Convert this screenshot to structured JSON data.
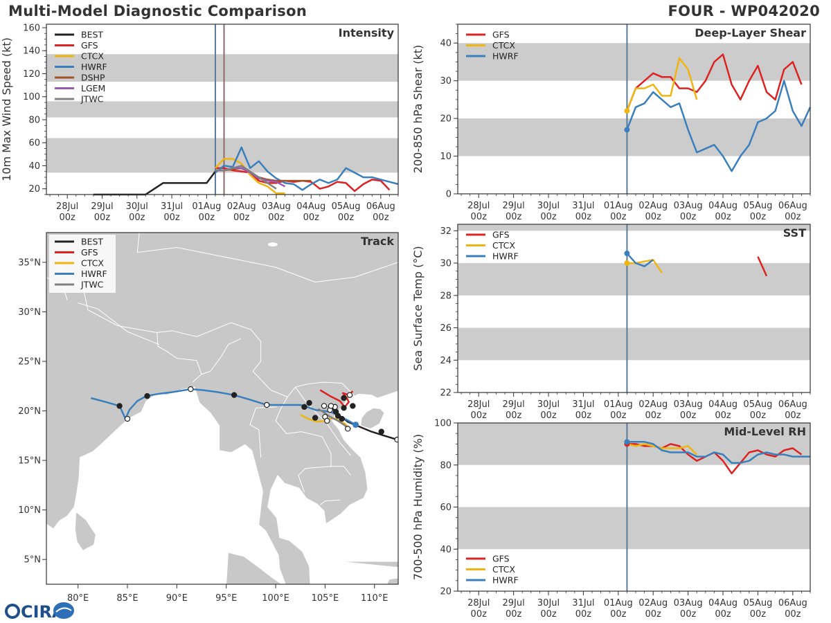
{
  "header": {
    "title": "Multi-Model Diagnostic Comparison",
    "storm": "FOUR - WP042020"
  },
  "logo": {
    "text": "CIRA"
  },
  "colors": {
    "BEST": "#222222",
    "GFS": "#dd2222",
    "CTCX": "#eeb511",
    "HWRF": "#3a7fbd",
    "DSHP": "#a0522d",
    "LGEM": "#9b59b6",
    "JTWC": "#808080",
    "band": "#cccccc",
    "land": "#c8c8c8",
    "sea": "#ffffff",
    "vline": "#5a7a99"
  },
  "time_axis": {
    "ticks": [
      0,
      1,
      2,
      3,
      4,
      5,
      6,
      7,
      8,
      9
    ],
    "labels_top": [
      "28Jul",
      "29Jul",
      "30Jul",
      "31Jul",
      "01Aug",
      "02Aug",
      "03Aug",
      "04Aug",
      "05Aug",
      "06Aug"
    ],
    "labels_bottom": [
      "00z",
      "00z",
      "00z",
      "00z",
      "00z",
      "00z",
      "00z",
      "00z",
      "00z",
      "00z"
    ],
    "range": [
      -0.6,
      9.5
    ]
  },
  "chart_data": [
    {
      "id": "intensity",
      "type": "line",
      "title": "Intensity",
      "ylabel": "10m Max Wind Speed (kt)",
      "ylim": [
        15,
        163
      ],
      "yticks": [
        20,
        40,
        60,
        80,
        100,
        120,
        140,
        160
      ],
      "bands": [
        [
          34,
          64
        ],
        [
          82,
          96
        ],
        [
          113,
          137
        ]
      ],
      "vlines": [
        4.25,
        4.5
      ],
      "legend": [
        "BEST",
        "GFS",
        "CTCX",
        "HWRF",
        "DSHP",
        "LGEM",
        "JTWC"
      ],
      "series": [
        {
          "name": "BEST",
          "x": [
            0.75,
            1,
            1.25,
            1.5,
            1.75,
            2,
            2.25,
            2.5,
            2.75,
            3,
            3.25,
            3.5,
            3.75,
            4,
            4.25
          ],
          "y": [
            15,
            15,
            15,
            15,
            15,
            15,
            15,
            20,
            25,
            25,
            25,
            25,
            25,
            25,
            35
          ]
        },
        {
          "name": "GFS",
          "x": [
            4.25,
            4.5,
            4.75,
            5,
            5.25,
            5.5,
            5.75,
            6,
            6.25,
            6.5,
            6.75,
            7,
            7.25,
            7.5,
            7.75,
            8,
            8.25,
            8.5,
            8.75,
            9,
            9.25
          ],
          "y": [
            38,
            38,
            36,
            35,
            34,
            27,
            25,
            25,
            27,
            26,
            27,
            26,
            20,
            22,
            26,
            25,
            18,
            24,
            28,
            27,
            19
          ]
        },
        {
          "name": "CTCX",
          "x": [
            4.25,
            4.5,
            4.75,
            5,
            5.25,
            5.5,
            5.75,
            6,
            6.25
          ],
          "y": [
            38,
            46,
            46,
            42,
            32,
            25,
            22,
            16,
            16
          ]
        },
        {
          "name": "HWRF",
          "x": [
            4.25,
            4.5,
            4.75,
            5,
            5.25,
            5.5,
            5.75,
            6,
            6.25,
            6.5,
            6.75,
            7,
            7.25,
            7.5,
            7.75,
            8,
            8.25,
            8.5,
            8.75,
            9,
            9.25,
            9.5
          ],
          "y": [
            34,
            40,
            39,
            56,
            38,
            44,
            35,
            29,
            25,
            24,
            19,
            24,
            28,
            25,
            28,
            38,
            34,
            30,
            30,
            28,
            26,
            24
          ]
        },
        {
          "name": "DSHP",
          "x": [
            4.25,
            4.5,
            4.75,
            5,
            5.25,
            5.5,
            5.75,
            6,
            6.25,
            6.5,
            6.75,
            7
          ],
          "y": [
            36,
            36,
            37,
            38,
            34,
            30,
            28,
            27,
            27,
            27,
            27,
            27
          ]
        },
        {
          "name": "LGEM",
          "x": [
            4.25,
            4.5,
            4.75,
            5,
            5.25,
            5.5,
            5.75,
            6,
            6.25
          ],
          "y": [
            36,
            36,
            38,
            38,
            34,
            29,
            27,
            26,
            22
          ]
        },
        {
          "name": "JTWC",
          "x": [
            4.25,
            4.5,
            4.75,
            5,
            5.25,
            5.5,
            5.75,
            6
          ],
          "y": [
            36,
            36,
            38,
            40,
            35,
            30,
            25,
            20
          ]
        }
      ]
    },
    {
      "id": "shear",
      "type": "line",
      "title": "Deep-Layer Shear",
      "ylabel": "200-850 hPa Shear (kt)",
      "ylim": [
        0,
        45
      ],
      "yticks": [
        0,
        10,
        20,
        30,
        40
      ],
      "bands": [
        [
          10,
          20
        ],
        [
          30,
          40
        ]
      ],
      "vlines": [
        4.25
      ],
      "legend": [
        "GFS",
        "CTCX",
        "HWRF"
      ],
      "series": [
        {
          "name": "GFS",
          "x": [
            4.25,
            4.5,
            4.75,
            5,
            5.25,
            5.5,
            5.75,
            6,
            6.25,
            6.5,
            6.75,
            7,
            7.25,
            7.5,
            7.75,
            8,
            8.25,
            8.5,
            8.75,
            9,
            9.25
          ],
          "y": [
            22,
            28,
            30,
            32,
            31,
            31,
            28,
            28,
            27,
            30,
            35,
            37,
            29,
            25,
            30,
            34,
            27,
            25,
            33,
            35,
            29
          ]
        },
        {
          "name": "CTCX",
          "x": [
            4.25,
            4.5,
            4.75,
            5,
            5.25,
            5.5,
            5.75,
            6,
            6.25
          ],
          "y": [
            22,
            28,
            28,
            29,
            26,
            26,
            36,
            33,
            25
          ]
        },
        {
          "name": "HWRF",
          "x": [
            4.25,
            4.5,
            4.75,
            5,
            5.25,
            5.5,
            5.75,
            6,
            6.25,
            6.5,
            6.75,
            7,
            7.25,
            7.5,
            7.75,
            8,
            8.25,
            8.5,
            8.75,
            9,
            9.25,
            9.5
          ],
          "y": [
            17,
            23,
            24,
            27,
            25,
            23,
            24,
            17,
            11,
            12,
            13,
            10,
            6,
            10,
            13,
            19,
            20,
            22,
            30,
            22,
            18,
            23
          ]
        }
      ],
      "markers": [
        {
          "name": "CTCX",
          "x": 4.25,
          "y": 22
        },
        {
          "name": "HWRF",
          "x": 4.25,
          "y": 17
        }
      ]
    },
    {
      "id": "sst",
      "type": "line",
      "title": "SST",
      "ylabel": "Sea Surface Temp (°C)",
      "ylim": [
        22,
        32.4
      ],
      "yticks": [
        22,
        24,
        26,
        28,
        30,
        32
      ],
      "bands": [
        [
          24,
          26
        ],
        [
          28,
          30
        ],
        [
          32,
          32.4
        ]
      ],
      "vlines": [
        4.25
      ],
      "legend": [
        "GFS",
        "CTCX",
        "HWRF"
      ],
      "series": [
        {
          "name": "GFS",
          "x": [
            8.0,
            8.25
          ],
          "y": [
            30.4,
            29.2
          ]
        },
        {
          "name": "CTCX",
          "x": [
            4.25,
            4.5,
            4.75,
            5,
            5.25
          ],
          "y": [
            30.0,
            30.0,
            30.1,
            30.2,
            29.4
          ]
        },
        {
          "name": "HWRF",
          "x": [
            4.25,
            4.5,
            4.75,
            5
          ],
          "y": [
            30.6,
            30.0,
            29.8,
            30.2
          ]
        }
      ],
      "markers": [
        {
          "name": "CTCX",
          "x": 4.25,
          "y": 30.0
        },
        {
          "name": "HWRF",
          "x": 4.25,
          "y": 30.6
        }
      ]
    },
    {
      "id": "rh",
      "type": "line",
      "title": "Mid-Level RH",
      "ylabel": "700-500 hPa Humidity (%)",
      "ylim": [
        20,
        100
      ],
      "yticks": [
        20,
        40,
        60,
        80,
        100
      ],
      "bands": [
        [
          40,
          60
        ],
        [
          80,
          100
        ]
      ],
      "vlines": [
        4.25
      ],
      "legend": [
        "GFS",
        "CTCX",
        "HWRF"
      ],
      "series": [
        {
          "name": "GFS",
          "x": [
            4.25,
            4.5,
            4.75,
            5,
            5.25,
            5.5,
            5.75,
            6,
            6.25,
            6.5,
            6.75,
            7,
            7.25,
            7.5,
            7.75,
            8,
            8.25,
            8.5,
            8.75,
            9,
            9.25
          ],
          "y": [
            90,
            90,
            89,
            89,
            88,
            90,
            89,
            85,
            82,
            84,
            86,
            82,
            76,
            81,
            86,
            87,
            85,
            84,
            87,
            88,
            85
          ]
        },
        {
          "name": "CTCX",
          "x": [
            4.25,
            4.5,
            4.75,
            5,
            5.25,
            5.5,
            5.75,
            6,
            6.25
          ],
          "y": [
            90,
            89,
            90,
            89,
            88,
            88,
            88,
            89,
            85
          ]
        },
        {
          "name": "HWRF",
          "x": [
            4.25,
            4.5,
            4.75,
            5,
            5.25,
            5.5,
            5.75,
            6,
            6.25,
            6.5,
            6.75,
            7,
            7.25,
            7.5,
            7.75,
            8,
            8.25,
            8.5,
            8.75,
            9,
            9.25,
            9.5
          ],
          "y": [
            91,
            91,
            91,
            90,
            87,
            86,
            86,
            86,
            84,
            84,
            86,
            85,
            81,
            81,
            82,
            85,
            86,
            85,
            85,
            84,
            84,
            84
          ]
        }
      ],
      "markers": [
        {
          "name": "GFS",
          "x": 4.25,
          "y": 90
        },
        {
          "name": "HWRF",
          "x": 4.25,
          "y": 91
        }
      ]
    },
    {
      "id": "track",
      "type": "scatter",
      "title": "Track",
      "xlim": [
        76.8,
        112.4
      ],
      "ylim": [
        2.5,
        38
      ],
      "xticks": [
        80,
        85,
        90,
        95,
        100,
        105,
        110
      ],
      "xticklabels": [
        "80°E",
        "85°E",
        "90°E",
        "95°E",
        "100°E",
        "105°E",
        "110°E"
      ],
      "yticks": [
        5,
        10,
        15,
        20,
        25,
        30,
        35
      ],
      "yticklabels": [
        "5°N",
        "10°N",
        "15°N",
        "20°N",
        "25°N",
        "30°N",
        "35°N"
      ],
      "legend": [
        "BEST",
        "GFS",
        "CTCX",
        "HWRF",
        "JTWC"
      ],
      "series": [
        {
          "name": "BEST",
          "lon": [
            112.3,
            111.0,
            109.7,
            108.5,
            107.3,
            106.8,
            106.3,
            106.0,
            105.6,
            105.3
          ],
          "lat": [
            17.1,
            17.5,
            17.9,
            18.4,
            18.9,
            19.3,
            19.6,
            20.0,
            20.3,
            20.5
          ]
        },
        {
          "name": "GFS",
          "lon": [
            104.5,
            105.5,
            106.5,
            107.0,
            107.4,
            107.2,
            106.8,
            107.4,
            107.8
          ],
          "lat": [
            22.1,
            21.5,
            21.0,
            20.4,
            20.9,
            21.3,
            21.8,
            21.6,
            22.0
          ]
        },
        {
          "name": "CTCX",
          "lon": [
            102.5,
            103.3,
            104.2,
            105.0,
            105.8,
            106.5,
            107.0,
            107.3,
            107.6
          ],
          "lat": [
            19.6,
            19.2,
            18.9,
            19.0,
            19.3,
            19.0,
            18.7,
            18.4,
            18.2
          ]
        },
        {
          "name": "HWRF",
          "lon": [
            108.1,
            107.2,
            106.4,
            105.6,
            104.8,
            104.0,
            103.2,
            102.5,
            100.8,
            99.1,
            97.5,
            95.8,
            94.1,
            92.6,
            91.4,
            89.6,
            88.0,
            86.9,
            86.0,
            85.2,
            84.8,
            84.2,
            82.8,
            81.3
          ],
          "lat": [
            18.6,
            19.1,
            19.5,
            19.9,
            20.0,
            20.1,
            20.4,
            20.6,
            20.6,
            20.6,
            21.1,
            21.6,
            21.9,
            22.1,
            22.2,
            21.9,
            21.7,
            21.5,
            21.0,
            20.1,
            19.2,
            20.5,
            20.9,
            21.3
          ]
        },
        {
          "name": "JTWC",
          "lon": [
            107.5,
            106.9,
            106.3,
            105.7,
            105.2,
            104.8,
            104.3
          ],
          "lat": [
            18.1,
            18.6,
            19.0,
            19.3,
            19.6,
            19.9,
            20.2
          ]
        }
      ],
      "points": [
        {
          "lon": 112.3,
          "lat": 17.1,
          "filled": false
        },
        {
          "lon": 110.7,
          "lat": 17.9,
          "filled": true
        },
        {
          "lon": 107.8,
          "lat": 20.5,
          "filled": true
        },
        {
          "lon": 107.5,
          "lat": 21.6,
          "filled": false
        },
        {
          "lon": 106.9,
          "lat": 21.3,
          "filled": true
        },
        {
          "lon": 107.3,
          "lat": 18.2,
          "filled": false
        },
        {
          "lon": 106.9,
          "lat": 20.3,
          "filled": true
        },
        {
          "lon": 106.7,
          "lat": 19.2,
          "filled": true
        },
        {
          "lon": 106.3,
          "lat": 19.5,
          "filled": true
        },
        {
          "lon": 106.1,
          "lat": 19.9,
          "filled": true
        },
        {
          "lon": 106.0,
          "lat": 20.4,
          "filled": false
        },
        {
          "lon": 105.5,
          "lat": 20.1,
          "filled": false
        },
        {
          "lon": 105.6,
          "lat": 20.5,
          "filled": false
        },
        {
          "lon": 104.9,
          "lat": 20.5,
          "filled": false
        },
        {
          "lon": 105.0,
          "lat": 19.4,
          "filled": false
        },
        {
          "lon": 105.2,
          "lat": 19.0,
          "filled": false
        },
        {
          "lon": 104.0,
          "lat": 19.3,
          "filled": true
        },
        {
          "lon": 103.4,
          "lat": 20.8,
          "filled": true
        },
        {
          "lon": 102.9,
          "lat": 20.4,
          "filled": true
        },
        {
          "lon": 99.1,
          "lat": 20.6,
          "filled": false
        },
        {
          "lon": 95.8,
          "lat": 21.6,
          "filled": true
        },
        {
          "lon": 91.4,
          "lat": 22.2,
          "filled": false
        },
        {
          "lon": 87.0,
          "lat": 21.5,
          "filled": true
        },
        {
          "lon": 85.0,
          "lat": 19.2,
          "filled": false
        },
        {
          "lon": 84.2,
          "lat": 20.5,
          "filled": true
        }
      ],
      "end_marker": {
        "name": "HWRF",
        "lon": 108.1,
        "lat": 18.6
      }
    }
  ]
}
